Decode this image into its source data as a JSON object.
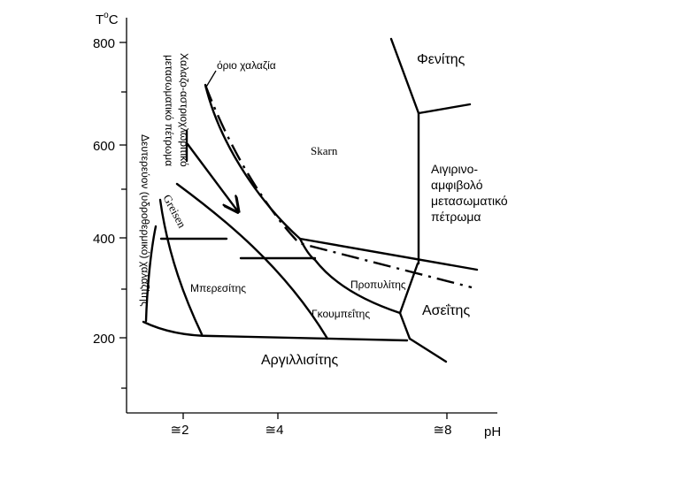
{
  "axes": {
    "y_label_T": "T",
    "y_label_sup": "o",
    "y_label_unit": "C",
    "x_label": "pH",
    "y_ticks": [
      "800",
      "600",
      "400",
      "200"
    ],
    "x_ticks": [
      "≅2",
      "≅4",
      "≅8"
    ]
  },
  "fields": {
    "fenitis": "Φενίτης",
    "skarn": "Skarn",
    "agirino_1": "Αιγιρινο-",
    "agirino_2": "αμφιβολό",
    "agirino_3": "μετασωματικό",
    "agirino_4": "πέτρωμα",
    "greisen": "Greisen",
    "mperesitis": "Μπερεσίτης",
    "gkoumpeitis": "Γκουμπεΐτης",
    "propylitis": "Προπυλίτης",
    "aseitis": "Ασεΐτης",
    "argillisitis": "Αργιλλισίτης",
    "orio_chalazia": "όριο χαλαζία",
    "vertical_1": "Χαλαζο-αστριοχλωριτικό",
    "vertical_2": "μετασωματικό πέτρωμα",
    "deutereion": "Δευτερεύον (υδροθερμικό) χαλαζίτης"
  }
}
